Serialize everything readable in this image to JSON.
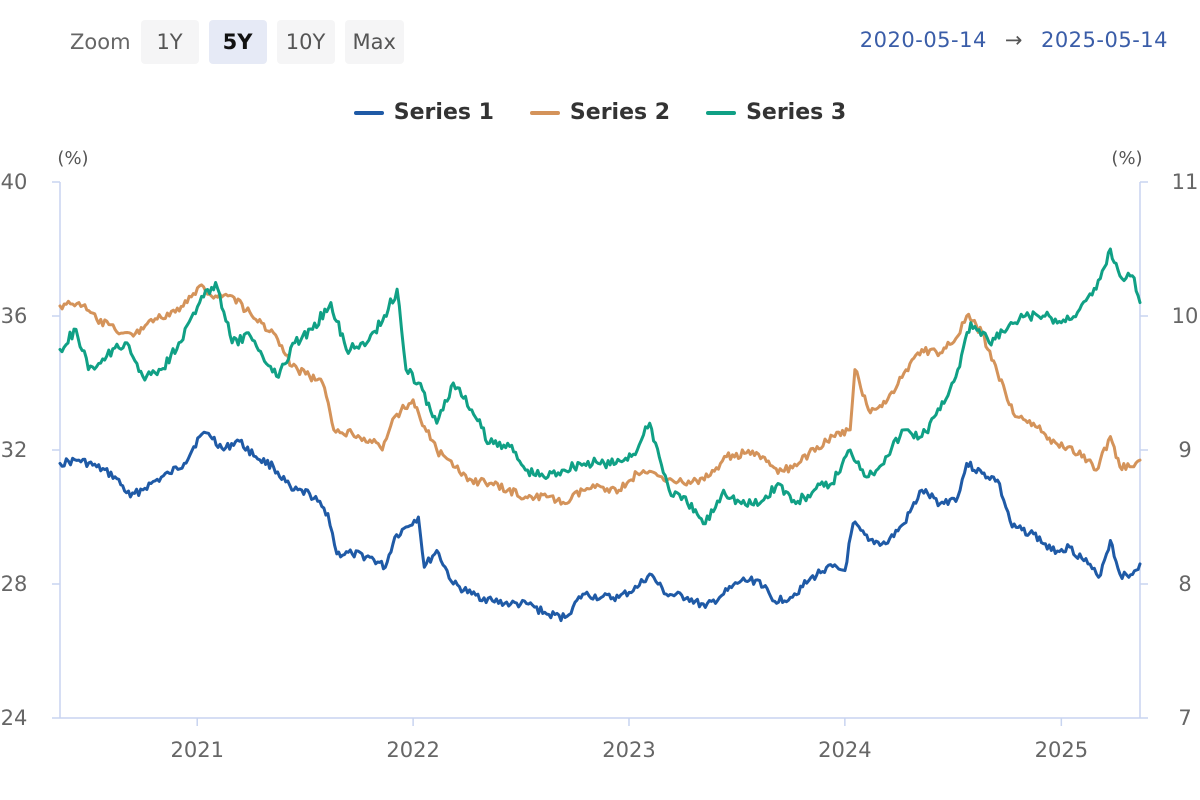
{
  "toolbar": {
    "zoom_label": "Zoom",
    "buttons": [
      {
        "label": "1Y",
        "active": false
      },
      {
        "label": "5Y",
        "active": true
      },
      {
        "label": "10Y",
        "active": false
      },
      {
        "label": "Max",
        "active": false
      }
    ]
  },
  "range": {
    "from": "2020-05-14",
    "arrow": "→",
    "to": "2025-05-14"
  },
  "colors": {
    "series1": "#1f5aa6",
    "series2": "#d4935a",
    "series3": "#10a085",
    "axis": "#c8d4f0"
  },
  "chart_data": {
    "type": "line",
    "title": "",
    "x_start": "2020-05-14",
    "x_end": "2025-05-14",
    "x_ticks": [
      "2021",
      "2022",
      "2023",
      "2024",
      "2025"
    ],
    "left_axis": {
      "unit": "(%)",
      "range": [
        24,
        40
      ],
      "ticks": [
        "24",
        "28",
        "32",
        "36",
        "40"
      ]
    },
    "right_axis": {
      "unit": "(%)",
      "range": [
        7,
        11
      ],
      "ticks": [
        "7",
        "8",
        "9",
        "10",
        "11"
      ]
    },
    "legend_position": "top-center",
    "series": [
      {
        "name": "Series 1",
        "axis": "left",
        "points": [
          [
            "2020-05-14",
            31.6
          ],
          [
            "2020-06-15",
            31.7
          ],
          [
            "2020-07-15",
            31.5
          ],
          [
            "2020-08-15",
            31.2
          ],
          [
            "2020-09-10",
            30.6
          ],
          [
            "2020-10-15",
            31.0
          ],
          [
            "2020-11-15",
            31.3
          ],
          [
            "2020-12-10",
            31.6
          ],
          [
            "2021-01-05",
            32.4
          ],
          [
            "2021-01-20",
            32.5
          ],
          [
            "2021-02-15",
            32.0
          ],
          [
            "2021-03-10",
            32.3
          ],
          [
            "2021-04-10",
            31.8
          ],
          [
            "2021-05-10",
            31.5
          ],
          [
            "2021-06-10",
            30.8
          ],
          [
            "2021-07-10",
            30.7
          ],
          [
            "2021-08-10",
            30.1
          ],
          [
            "2021-08-25",
            28.9
          ],
          [
            "2021-09-20",
            28.9
          ],
          [
            "2021-10-20",
            28.8
          ],
          [
            "2021-11-15",
            28.5
          ],
          [
            "2021-12-01",
            29.4
          ],
          [
            "2021-12-20",
            29.7
          ],
          [
            "2022-01-10",
            30.0
          ],
          [
            "2022-01-20",
            28.5
          ],
          [
            "2022-02-10",
            29.0
          ],
          [
            "2022-03-10",
            28.0
          ],
          [
            "2022-04-10",
            27.7
          ],
          [
            "2022-05-15",
            27.5
          ],
          [
            "2022-06-15",
            27.4
          ],
          [
            "2022-07-15",
            27.4
          ],
          [
            "2022-08-15",
            27.1
          ],
          [
            "2022-09-15",
            27.0
          ],
          [
            "2022-10-15",
            27.7
          ],
          [
            "2022-11-15",
            27.6
          ],
          [
            "2022-12-15",
            27.6
          ],
          [
            "2023-01-15",
            27.9
          ],
          [
            "2023-02-05",
            28.3
          ],
          [
            "2023-03-05",
            27.7
          ],
          [
            "2023-04-10",
            27.6
          ],
          [
            "2023-05-10",
            27.3
          ],
          [
            "2023-06-10",
            27.7
          ],
          [
            "2023-07-10",
            28.1
          ],
          [
            "2023-08-10",
            28.1
          ],
          [
            "2023-09-01",
            27.5
          ],
          [
            "2023-10-01",
            27.6
          ],
          [
            "2023-11-01",
            28.1
          ],
          [
            "2023-12-01",
            28.5
          ],
          [
            "2024-01-01",
            28.4
          ],
          [
            "2024-01-15",
            29.8
          ],
          [
            "2024-02-10",
            29.3
          ],
          [
            "2024-03-10",
            29.2
          ],
          [
            "2024-04-10",
            29.8
          ],
          [
            "2024-05-10",
            30.8
          ],
          [
            "2024-06-10",
            30.4
          ],
          [
            "2024-07-10",
            30.6
          ],
          [
            "2024-07-25",
            31.6
          ],
          [
            "2024-08-20",
            31.3
          ],
          [
            "2024-09-15",
            31.1
          ],
          [
            "2024-10-10",
            29.7
          ],
          [
            "2024-11-15",
            29.5
          ],
          [
            "2024-12-15",
            29.0
          ],
          [
            "2025-01-15",
            29.1
          ],
          [
            "2025-02-15",
            28.6
          ],
          [
            "2025-03-05",
            28.2
          ],
          [
            "2025-03-25",
            29.3
          ],
          [
            "2025-04-10",
            28.3
          ],
          [
            "2025-04-25",
            28.2
          ],
          [
            "2025-05-14",
            28.6
          ]
        ]
      },
      {
        "name": "Series 2",
        "axis": "left",
        "points": [
          [
            "2020-05-14",
            36.3
          ],
          [
            "2020-06-15",
            36.4
          ],
          [
            "2020-07-15",
            35.9
          ],
          [
            "2020-08-15",
            35.6
          ],
          [
            "2020-09-15",
            35.4
          ],
          [
            "2020-10-15",
            35.9
          ],
          [
            "2020-11-15",
            36.0
          ],
          [
            "2020-12-15",
            36.4
          ],
          [
            "2021-01-05",
            36.9
          ],
          [
            "2021-02-01",
            36.6
          ],
          [
            "2021-03-01",
            36.6
          ],
          [
            "2021-04-10",
            35.9
          ],
          [
            "2021-05-10",
            35.5
          ],
          [
            "2021-06-10",
            34.5
          ],
          [
            "2021-07-10",
            34.2
          ],
          [
            "2021-08-01",
            34.0
          ],
          [
            "2021-08-20",
            32.6
          ],
          [
            "2021-09-20",
            32.5
          ],
          [
            "2021-10-20",
            32.3
          ],
          [
            "2021-11-10",
            32.0
          ],
          [
            "2021-12-01",
            33.0
          ],
          [
            "2022-01-01",
            33.5
          ],
          [
            "2022-01-20",
            32.7
          ],
          [
            "2022-02-10",
            32.0
          ],
          [
            "2022-03-10",
            31.5
          ],
          [
            "2022-04-10",
            31.1
          ],
          [
            "2022-05-10",
            31.0
          ],
          [
            "2022-06-10",
            30.8
          ],
          [
            "2022-07-10",
            30.6
          ],
          [
            "2022-08-15",
            30.6
          ],
          [
            "2022-09-15",
            30.4
          ],
          [
            "2022-10-15",
            30.8
          ],
          [
            "2022-11-15",
            30.9
          ],
          [
            "2022-12-15",
            30.8
          ],
          [
            "2023-01-15",
            31.3
          ],
          [
            "2023-02-15",
            31.3
          ],
          [
            "2023-03-15",
            31.1
          ],
          [
            "2023-04-15",
            31.0
          ],
          [
            "2023-05-15",
            31.2
          ],
          [
            "2023-06-15",
            31.8
          ],
          [
            "2023-07-15",
            31.9
          ],
          [
            "2023-08-15",
            31.8
          ],
          [
            "2023-09-10",
            31.3
          ],
          [
            "2023-10-15",
            31.6
          ],
          [
            "2023-11-15",
            32.1
          ],
          [
            "2023-12-15",
            32.4
          ],
          [
            "2024-01-10",
            32.6
          ],
          [
            "2024-01-18",
            34.4
          ],
          [
            "2024-02-10",
            33.2
          ],
          [
            "2024-03-10",
            33.4
          ],
          [
            "2024-04-10",
            34.3
          ],
          [
            "2024-05-10",
            35.0
          ],
          [
            "2024-06-10",
            34.9
          ],
          [
            "2024-07-10",
            35.4
          ],
          [
            "2024-07-25",
            36.0
          ],
          [
            "2024-08-20",
            35.5
          ],
          [
            "2024-09-15",
            34.3
          ],
          [
            "2024-10-15",
            33.0
          ],
          [
            "2024-11-15",
            32.8
          ],
          [
            "2024-12-15",
            32.2
          ],
          [
            "2025-01-15",
            32.1
          ],
          [
            "2025-02-15",
            31.7
          ],
          [
            "2025-03-01",
            31.4
          ],
          [
            "2025-03-25",
            32.4
          ],
          [
            "2025-04-10",
            31.5
          ],
          [
            "2025-04-30",
            31.5
          ],
          [
            "2025-05-14",
            31.7
          ]
        ]
      },
      {
        "name": "Series 3",
        "axis": "right",
        "points": [
          [
            "2020-05-14",
            9.75
          ],
          [
            "2020-06-10",
            9.9
          ],
          [
            "2020-07-01",
            9.6
          ],
          [
            "2020-08-01",
            9.7
          ],
          [
            "2020-09-01",
            9.8
          ],
          [
            "2020-10-01",
            9.55
          ],
          [
            "2020-11-01",
            9.6
          ],
          [
            "2020-12-01",
            9.8
          ],
          [
            "2021-01-05",
            10.1
          ],
          [
            "2021-02-01",
            10.25
          ],
          [
            "2021-03-01",
            9.8
          ],
          [
            "2021-04-01",
            9.85
          ],
          [
            "2021-05-15",
            9.55
          ],
          [
            "2021-06-15",
            9.8
          ],
          [
            "2021-07-15",
            9.9
          ],
          [
            "2021-08-15",
            10.1
          ],
          [
            "2021-09-10",
            9.75
          ],
          [
            "2021-10-15",
            9.8
          ],
          [
            "2021-11-20",
            10.05
          ],
          [
            "2021-12-05",
            10.2
          ],
          [
            "2021-12-20",
            9.6
          ],
          [
            "2022-01-10",
            9.5
          ],
          [
            "2022-02-10",
            9.2
          ],
          [
            "2022-03-10",
            9.5
          ],
          [
            "2022-04-10",
            9.3
          ],
          [
            "2022-05-10",
            9.05
          ],
          [
            "2022-06-10",
            9.05
          ],
          [
            "2022-07-10",
            8.85
          ],
          [
            "2022-08-10",
            8.8
          ],
          [
            "2022-09-10",
            8.85
          ],
          [
            "2022-10-10",
            8.9
          ],
          [
            "2022-11-10",
            8.9
          ],
          [
            "2022-12-10",
            8.9
          ],
          [
            "2023-01-15",
            9.0
          ],
          [
            "2023-02-05",
            9.2
          ],
          [
            "2023-03-10",
            8.7
          ],
          [
            "2023-04-10",
            8.6
          ],
          [
            "2023-05-10",
            8.45
          ],
          [
            "2023-06-10",
            8.7
          ],
          [
            "2023-07-10",
            8.6
          ],
          [
            "2023-08-10",
            8.6
          ],
          [
            "2023-09-10",
            8.75
          ],
          [
            "2023-10-10",
            8.6
          ],
          [
            "2023-11-10",
            8.7
          ],
          [
            "2023-12-10",
            8.75
          ],
          [
            "2024-01-10",
            9.0
          ],
          [
            "2024-02-10",
            8.8
          ],
          [
            "2024-03-10",
            8.95
          ],
          [
            "2024-04-10",
            9.15
          ],
          [
            "2024-05-10",
            9.1
          ],
          [
            "2024-06-10",
            9.3
          ],
          [
            "2024-07-10",
            9.6
          ],
          [
            "2024-08-01",
            9.95
          ],
          [
            "2024-09-01",
            9.8
          ],
          [
            "2024-10-01",
            9.9
          ],
          [
            "2024-11-01",
            10.0
          ],
          [
            "2024-12-01",
            10.0
          ],
          [
            "2025-01-01",
            9.95
          ],
          [
            "2025-02-01",
            10.05
          ],
          [
            "2025-03-01",
            10.2
          ],
          [
            "2025-03-25",
            10.5
          ],
          [
            "2025-04-10",
            10.3
          ],
          [
            "2025-05-01",
            10.3
          ],
          [
            "2025-05-14",
            10.1
          ]
        ]
      }
    ]
  }
}
